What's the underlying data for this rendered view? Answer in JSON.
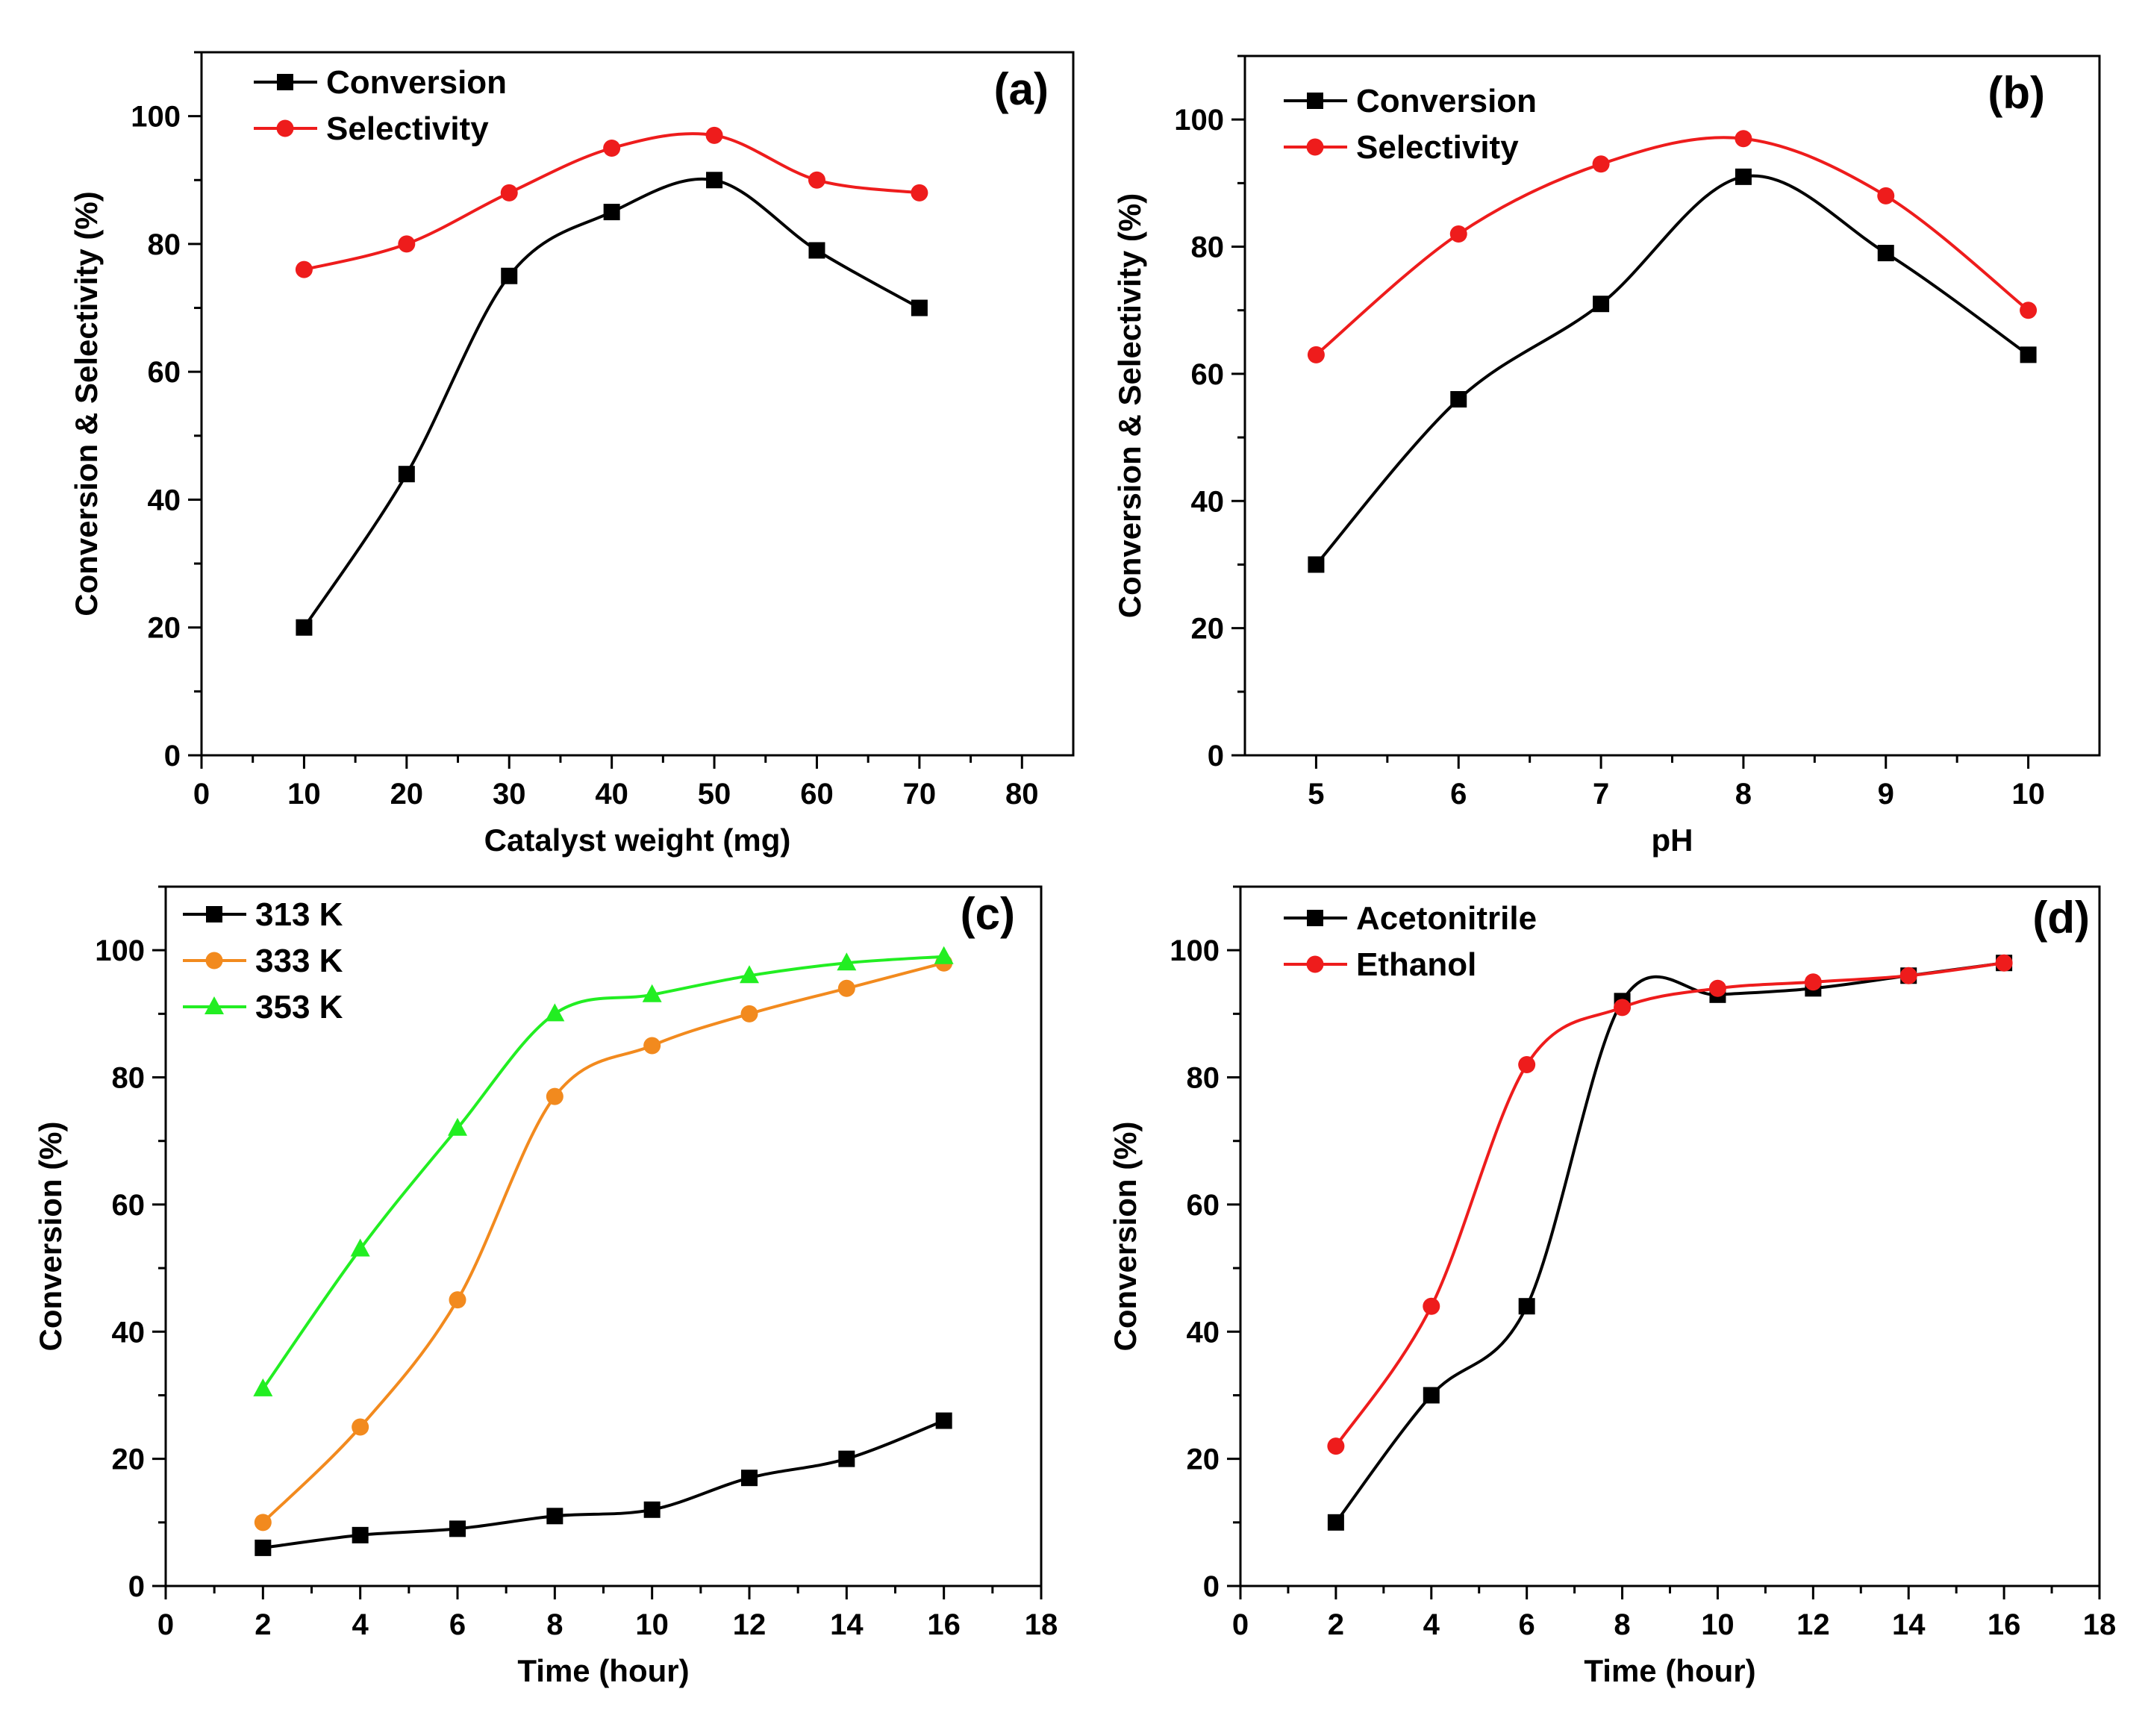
{
  "chart_data": [
    {
      "panel": "(a)",
      "type": "line",
      "xlabel": "Catalyst weight (mg)",
      "ylabel": "Conversion & Selectivity (%)",
      "xlim": [
        0,
        85
      ],
      "ylim": [
        0,
        110
      ],
      "xticks": [
        0,
        10,
        20,
        30,
        40,
        50,
        60,
        70,
        80
      ],
      "yticks": [
        0,
        20,
        40,
        60,
        80,
        100
      ],
      "legend_position": "top-left",
      "x": [
        10,
        20,
        30,
        40,
        50,
        60,
        70
      ],
      "series": [
        {
          "name": "Conversion",
          "color": "#000000",
          "marker": "square",
          "values": [
            20,
            44,
            75,
            85,
            90,
            79,
            70
          ]
        },
        {
          "name": "Selectivity",
          "color": "#ee1c1c",
          "marker": "circle",
          "values": [
            76,
            80,
            88,
            95,
            97,
            90,
            88
          ]
        }
      ]
    },
    {
      "panel": "(b)",
      "type": "line",
      "xlabel": "pH",
      "ylabel": "Conversion & Selectivity (%)",
      "xlim": [
        4.5,
        10.5
      ],
      "ylim": [
        0,
        110
      ],
      "xticks": [
        5,
        6,
        7,
        8,
        9,
        10
      ],
      "yticks": [
        0,
        20,
        40,
        60,
        80,
        100
      ],
      "legend_position": "top-left",
      "x": [
        5,
        6,
        7,
        8,
        9,
        10
      ],
      "series": [
        {
          "name": "Conversion",
          "color": "#000000",
          "marker": "square",
          "values": [
            30,
            56,
            71,
            91,
            79,
            63
          ]
        },
        {
          "name": "Selectivity",
          "color": "#ee1c1c",
          "marker": "circle",
          "values": [
            63,
            82,
            93,
            97,
            88,
            70
          ]
        }
      ]
    },
    {
      "panel": "(c)",
      "type": "line",
      "xlabel": "Time (hour)",
      "ylabel": "Conversion (%)",
      "xlim": [
        0,
        18
      ],
      "ylim": [
        0,
        110
      ],
      "xticks": [
        0,
        2,
        4,
        6,
        8,
        10,
        12,
        14,
        16,
        18
      ],
      "yticks": [
        0,
        20,
        40,
        60,
        80,
        100
      ],
      "legend_position": "top-left",
      "x": [
        2,
        4,
        6,
        8,
        10,
        12,
        14,
        16
      ],
      "series": [
        {
          "name": "313 K",
          "color": "#000000",
          "marker": "square",
          "values": [
            6,
            8,
            9,
            11,
            12,
            17,
            20,
            26
          ]
        },
        {
          "name": "333 K",
          "color": "#f28a1e",
          "marker": "circle",
          "values": [
            10,
            25,
            45,
            77,
            85,
            90,
            94,
            98
          ]
        },
        {
          "name": "353 K",
          "color": "#22ee22",
          "marker": "triangle",
          "values": [
            31,
            53,
            72,
            90,
            93,
            96,
            98,
            99
          ]
        }
      ]
    },
    {
      "panel": "(d)",
      "type": "line",
      "xlabel": "Time (hour)",
      "ylabel": "Conversion (%)",
      "xlim": [
        0,
        18
      ],
      "ylim": [
        0,
        110
      ],
      "xticks": [
        0,
        2,
        4,
        6,
        8,
        10,
        12,
        14,
        16,
        18
      ],
      "yticks": [
        0,
        20,
        40,
        60,
        80,
        100
      ],
      "legend_position": "top-left",
      "x": [
        2,
        4,
        6,
        8,
        10,
        12,
        14,
        16
      ],
      "series": [
        {
          "name": "Acetonitrile",
          "color": "#000000",
          "marker": "square",
          "values": [
            10,
            30,
            44,
            92,
            93,
            94,
            96,
            98
          ]
        },
        {
          "name": "Ethanol",
          "color": "#ee1c1c",
          "marker": "circle",
          "values": [
            22,
            44,
            82,
            91,
            94,
            95,
            96,
            98
          ]
        }
      ]
    }
  ]
}
